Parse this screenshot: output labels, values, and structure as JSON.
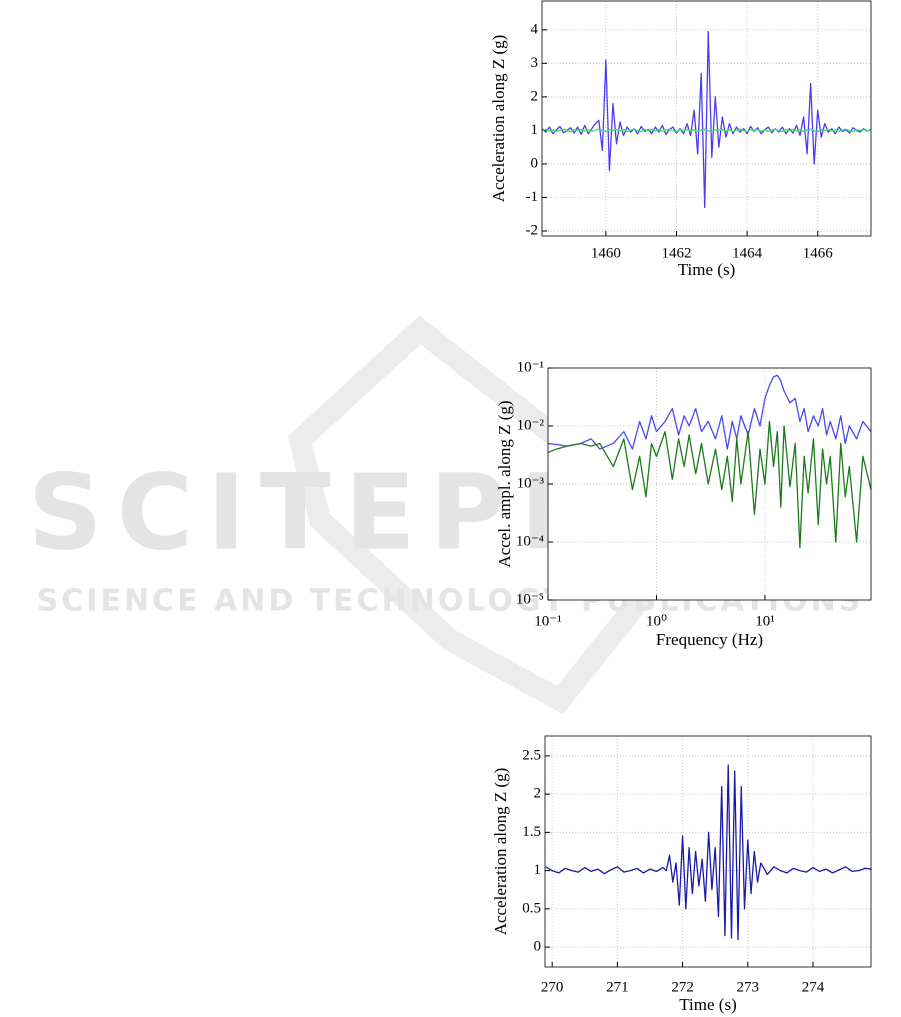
{
  "watermark": {
    "title": "SCITEPRESS",
    "subtitle": "SCIENCE AND TECHNOLOGY PUBLICATIONS"
  },
  "chart_data": [
    {
      "type": "line",
      "x_label": "Time (s)",
      "y_label": "Acceleration along Z (g)",
      "xlim": [
        1458.19,
        1467.51
      ],
      "ylim": [
        -2.15,
        4.86
      ],
      "xticks": [
        1460,
        1462,
        1464,
        1466
      ],
      "yticks": [
        -2,
        -1,
        0,
        1,
        2,
        3,
        4
      ],
      "grid": true,
      "x": [
        1458.2,
        1458.3,
        1458.4,
        1458.5,
        1458.6,
        1458.7,
        1458.8,
        1458.9,
        1459.0,
        1459.1,
        1459.2,
        1459.3,
        1459.4,
        1459.5,
        1459.6,
        1459.7,
        1459.8,
        1459.9,
        1460.0,
        1460.1,
        1460.2,
        1460.3,
        1460.4,
        1460.5,
        1460.6,
        1460.7,
        1460.8,
        1460.9,
        1461.0,
        1461.1,
        1461.2,
        1461.3,
        1461.4,
        1461.5,
        1461.6,
        1461.7,
        1461.8,
        1461.9,
        1462.0,
        1462.1,
        1462.2,
        1462.3,
        1462.4,
        1462.5,
        1462.6,
        1462.7,
        1462.8,
        1462.9,
        1463.0,
        1463.1,
        1463.2,
        1463.3,
        1463.4,
        1463.5,
        1463.6,
        1463.7,
        1463.8,
        1463.9,
        1464.0,
        1464.1,
        1464.2,
        1464.3,
        1464.4,
        1464.5,
        1464.6,
        1464.7,
        1464.8,
        1464.9,
        1465.0,
        1465.1,
        1465.2,
        1465.3,
        1465.4,
        1465.5,
        1465.6,
        1465.7,
        1465.8,
        1465.9,
        1466.0,
        1466.1,
        1466.2,
        1466.3,
        1466.4,
        1466.5,
        1466.6,
        1466.7,
        1466.8,
        1466.9,
        1467.0,
        1467.1,
        1467.2,
        1467.3,
        1467.4,
        1467.5
      ],
      "series": [
        {
          "color": "#4b3cf0",
          "values": [
            1.05,
            0.95,
            1.1,
            0.9,
            1.02,
            1.12,
            0.93,
            1.0,
            1.08,
            0.92,
            1.1,
            0.88,
            1.15,
            0.9,
            1.05,
            1.2,
            1.3,
            0.4,
            3.1,
            -0.2,
            1.8,
            0.6,
            1.25,
            0.85,
            1.1,
            0.95,
            1.05,
            0.9,
            1.12,
            0.97,
            1.03,
            0.9,
            1.1,
            0.95,
            1.15,
            0.88,
            1.02,
            1.1,
            0.92,
            1.05,
            0.9,
            1.2,
            0.85,
            1.6,
            0.3,
            2.7,
            -1.3,
            3.95,
            0.2,
            2.0,
            0.5,
            1.4,
            0.8,
            1.2,
            0.9,
            1.1,
            0.95,
            1.05,
            0.9,
            1.12,
            0.97,
            1.08,
            0.9,
            1.02,
            1.1,
            0.93,
            1.05,
            0.95,
            1.1,
            0.9,
            1.05,
            0.92,
            1.15,
            0.85,
            1.4,
            0.3,
            2.4,
            0.0,
            1.6,
            0.8,
            1.2,
            0.95,
            1.05,
            0.9,
            1.1,
            0.97,
            1.03,
            0.92,
            1.08,
            1.0,
            0.95,
            1.05,
            0.98,
            1.02
          ]
        },
        {
          "color": "#3de060",
          "values": [
            1.0,
            1.03,
            0.98,
            1.02,
            0.97,
            1.01,
            1.04,
            0.99,
            0.96,
            1.02,
            1.0,
            1.03,
            0.98,
            1.02,
            0.97,
            1.01,
            1.04,
            0.99,
            0.96,
            1.02,
            1.0,
            1.03,
            0.98,
            1.02,
            0.97,
            1.01,
            1.04,
            0.99,
            0.96,
            1.02,
            1.0,
            1.03,
            0.98,
            1.02,
            0.97,
            1.01,
            1.04,
            0.99,
            0.96,
            1.02,
            1.0,
            1.03,
            0.98,
            1.02,
            0.97,
            1.01,
            1.04,
            0.99,
            0.96,
            1.02,
            1.0,
            1.03,
            0.98,
            1.02,
            0.97,
            1.01,
            1.04,
            0.99,
            0.96,
            1.02,
            1.0,
            1.03,
            0.98,
            1.02,
            0.97,
            1.01,
            1.04,
            0.99,
            0.96,
            1.02,
            1.0,
            1.03,
            0.98,
            1.02,
            0.97,
            1.01,
            1.04,
            0.99,
            0.96,
            1.02,
            1.0,
            1.03,
            0.98,
            1.02,
            0.97,
            1.01,
            1.04,
            0.99,
            0.96,
            1.02,
            1.0,
            1.03,
            0.98,
            1.02
          ]
        }
      ]
    },
    {
      "type": "line",
      "x_label": "Frequency (Hz)",
      "y_label": "Accel. ampl. along Z (g)",
      "xlog": true,
      "ylog": true,
      "grid": true,
      "xlim": [
        0.1,
        95
      ],
      "ylim": [
        1e-05,
        0.1
      ],
      "xticks": [
        {
          "value": 0.1,
          "label": "10⁻¹"
        },
        {
          "value": 1,
          "label": "10⁰"
        },
        {
          "value": 10,
          "label": "10¹"
        }
      ],
      "yticks": [
        {
          "value": 1e-05,
          "label": "10⁻⁵"
        },
        {
          "value": 0.0001,
          "label": "10⁻⁴"
        },
        {
          "value": 0.001,
          "label": "10⁻³"
        },
        {
          "value": 0.01,
          "label": "10⁻²"
        },
        {
          "value": 0.1,
          "label": "10⁻¹"
        }
      ],
      "x": [
        0.1,
        0.12,
        0.15,
        0.2,
        0.25,
        0.3,
        0.4,
        0.5,
        0.6,
        0.7,
        0.8,
        0.9,
        1,
        1.2,
        1.4,
        1.6,
        1.8,
        2,
        2.3,
        2.6,
        3,
        3.5,
        4,
        4.5,
        5,
        5.5,
        6,
        7,
        8,
        9,
        10,
        11,
        12,
        13,
        14,
        15,
        17,
        19,
        21,
        23,
        25,
        28,
        31,
        34,
        37,
        40,
        45,
        50,
        55,
        60,
        70,
        80,
        95
      ],
      "series": [
        {
          "color": "#4a4af0",
          "values": [
            0.005,
            0.0048,
            0.0045,
            0.005,
            0.006,
            0.004,
            0.005,
            0.008,
            0.004,
            0.012,
            0.006,
            0.015,
            0.008,
            0.012,
            0.02,
            0.007,
            0.015,
            0.01,
            0.02,
            0.008,
            0.012,
            0.006,
            0.015,
            0.004,
            0.012,
            0.006,
            0.015,
            0.007,
            0.02,
            0.01,
            0.03,
            0.05,
            0.07,
            0.075,
            0.06,
            0.04,
            0.025,
            0.03,
            0.012,
            0.02,
            0.008,
            0.015,
            0.01,
            0.02,
            0.007,
            0.012,
            0.006,
            0.015,
            0.005,
            0.01,
            0.006,
            0.012,
            0.008
          ]
        },
        {
          "color": "#1b7a1b",
          "values": [
            0.0035,
            0.004,
            0.0045,
            0.005,
            0.0045,
            0.005,
            0.002,
            0.006,
            0.0008,
            0.003,
            0.0006,
            0.005,
            0.003,
            0.008,
            0.0012,
            0.006,
            0.002,
            0.007,
            0.0015,
            0.005,
            0.001,
            0.004,
            0.0008,
            0.003,
            0.0005,
            0.006,
            0.001,
            0.008,
            0.0003,
            0.004,
            0.001,
            0.012,
            0.002,
            0.008,
            0.0004,
            0.01,
            0.0009,
            0.005,
            8e-05,
            0.003,
            0.0007,
            0.006,
            0.0002,
            0.004,
            0.001,
            0.003,
            0.0001,
            0.005,
            0.0006,
            0.002,
            0.0001,
            0.003,
            0.0008
          ]
        }
      ]
    },
    {
      "type": "line",
      "x_label": "Time (s)",
      "y_label": "Acceleration along Z (g)",
      "xlim": [
        269.89,
        274.89
      ],
      "ylim": [
        -0.26,
        2.76
      ],
      "xticks": [
        270,
        271,
        272,
        273,
        274
      ],
      "yticks": [
        0,
        0.5,
        1,
        1.5,
        2,
        2.5
      ],
      "grid": true,
      "x": [
        269.9,
        270.0,
        270.1,
        270.2,
        270.3,
        270.4,
        270.5,
        270.6,
        270.7,
        270.8,
        270.9,
        271.0,
        271.1,
        271.2,
        271.3,
        271.4,
        271.5,
        271.6,
        271.7,
        271.75,
        271.8,
        271.85,
        271.9,
        271.95,
        272.0,
        272.05,
        272.1,
        272.15,
        272.2,
        272.25,
        272.3,
        272.35,
        272.4,
        272.45,
        272.5,
        272.55,
        272.6,
        272.65,
        272.7,
        272.75,
        272.8,
        272.85,
        272.9,
        272.95,
        273.0,
        273.05,
        273.1,
        273.15,
        273.2,
        273.3,
        273.4,
        273.5,
        273.6,
        273.7,
        273.8,
        273.9,
        274.0,
        274.1,
        274.2,
        274.3,
        274.4,
        274.5,
        274.6,
        274.7,
        274.8,
        274.9
      ],
      "series": [
        {
          "color": "#1a1aa8",
          "values": [
            1.05,
            1.0,
            0.97,
            1.03,
            1.0,
            0.98,
            1.04,
            0.99,
            1.02,
            0.96,
            1.01,
            1.05,
            0.98,
            1.0,
            1.03,
            0.97,
            1.02,
            0.99,
            1.04,
            1.0,
            1.2,
            0.85,
            1.1,
            0.55,
            1.45,
            0.5,
            1.3,
            0.7,
            1.25,
            0.8,
            1.15,
            0.6,
            1.5,
            0.75,
            1.3,
            0.4,
            2.1,
            0.15,
            2.38,
            0.12,
            2.3,
            0.1,
            2.1,
            0.5,
            1.4,
            0.7,
            1.25,
            0.85,
            1.1,
            0.95,
            1.05,
            1.0,
            0.97,
            1.03,
            1.0,
            0.98,
            1.04,
            0.99,
            1.02,
            0.97,
            1.01,
            1.05,
            0.99,
            1.0,
            1.03,
            1.02
          ]
        }
      ]
    }
  ]
}
